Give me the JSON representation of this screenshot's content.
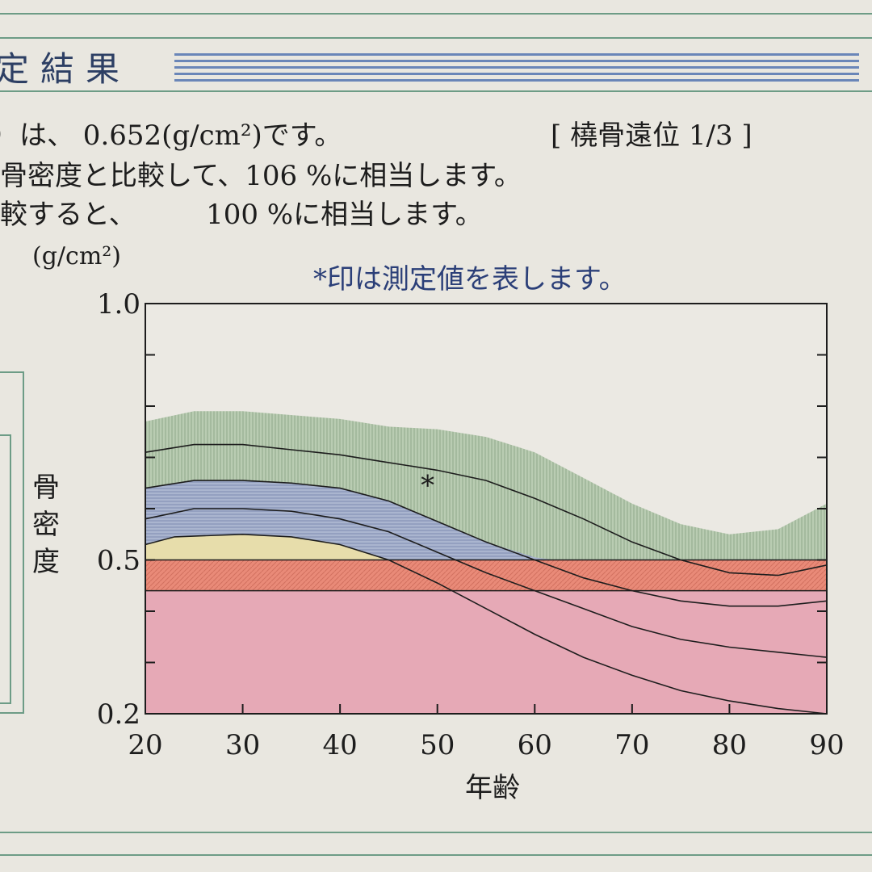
{
  "header": {
    "title": "定結果"
  },
  "text_lines": [
    "）は、 0.652(g/cm²)です。",
    "骨密度と比較して、106 %に相当します。",
    "較すると、        100 %に相当します。"
  ],
  "site_label": "[ 橈骨遠位 1/3 ]",
  "note": "*印は測定値を表します。",
  "chart_data": {
    "type": "area",
    "unit_label": "(g/cm²)",
    "ylabel": "骨密度",
    "xlabel": "年齢",
    "xlim": [
      20,
      90
    ],
    "ylim": [
      0.2,
      1.0
    ],
    "x_ticks": [
      "20",
      "30",
      "40",
      "50",
      "60",
      "70",
      "80",
      "90"
    ],
    "y_ticks": [
      "0.2",
      "0.5",
      "1.0"
    ],
    "bands": [
      {
        "name": "green",
        "color": "#b9ccb2",
        "points": [
          [
            20,
            0.77
          ],
          [
            25,
            0.79
          ],
          [
            30,
            0.79
          ],
          [
            40,
            0.775
          ],
          [
            45,
            0.76
          ],
          [
            50,
            0.755
          ],
          [
            55,
            0.74
          ],
          [
            60,
            0.71
          ],
          [
            65,
            0.66
          ],
          [
            70,
            0.61
          ],
          [
            75,
            0.57
          ],
          [
            80,
            0.55
          ],
          [
            85,
            0.56
          ],
          [
            90,
            0.61
          ]
        ]
      },
      {
        "name": "blue",
        "color": "#aab5cf",
        "points": [
          [
            20,
            0.64
          ],
          [
            25,
            0.655
          ],
          [
            30,
            0.655
          ],
          [
            35,
            0.65
          ],
          [
            40,
            0.64
          ],
          [
            45,
            0.615
          ],
          [
            50,
            0.575
          ],
          [
            55,
            0.535
          ],
          [
            60,
            0.505
          ],
          [
            62,
            0.5
          ]
        ]
      },
      {
        "name": "yellow",
        "color": "#e7ddab",
        "points": [
          [
            20,
            0.53
          ],
          [
            23,
            0.545
          ],
          [
            30,
            0.55
          ],
          [
            35,
            0.545
          ],
          [
            40,
            0.53
          ],
          [
            45,
            0.5
          ]
        ]
      }
    ],
    "reference_bands": [
      {
        "name": "orange",
        "from": 0.44,
        "to": 0.5,
        "color": "#e98a78"
      },
      {
        "name": "pink",
        "from": 0.2,
        "to": 0.44,
        "color": "#e6a9b6"
      }
    ],
    "curves": [
      {
        "points": [
          [
            20,
            0.71
          ],
          [
            25,
            0.725
          ],
          [
            30,
            0.725
          ],
          [
            35,
            0.715
          ],
          [
            40,
            0.705
          ],
          [
            45,
            0.69
          ],
          [
            50,
            0.675
          ],
          [
            55,
            0.655
          ],
          [
            60,
            0.62
          ],
          [
            65,
            0.58
          ],
          [
            70,
            0.535
          ],
          [
            75,
            0.5
          ],
          [
            80,
            0.475
          ],
          [
            85,
            0.47
          ],
          [
            90,
            0.49
          ]
        ]
      },
      {
        "points": [
          [
            20,
            0.64
          ],
          [
            25,
            0.655
          ],
          [
            30,
            0.655
          ],
          [
            35,
            0.65
          ],
          [
            40,
            0.64
          ],
          [
            45,
            0.615
          ],
          [
            50,
            0.575
          ],
          [
            55,
            0.535
          ],
          [
            60,
            0.5
          ],
          [
            65,
            0.465
          ],
          [
            70,
            0.44
          ],
          [
            75,
            0.42
          ],
          [
            80,
            0.41
          ],
          [
            85,
            0.41
          ],
          [
            90,
            0.42
          ]
        ]
      },
      {
        "points": [
          [
            20,
            0.58
          ],
          [
            25,
            0.6
          ],
          [
            30,
            0.6
          ],
          [
            35,
            0.595
          ],
          [
            40,
            0.58
          ],
          [
            45,
            0.555
          ],
          [
            50,
            0.515
          ],
          [
            55,
            0.475
          ],
          [
            60,
            0.44
          ],
          [
            65,
            0.405
          ],
          [
            70,
            0.37
          ],
          [
            75,
            0.345
          ],
          [
            80,
            0.33
          ],
          [
            85,
            0.32
          ],
          [
            90,
            0.31
          ]
        ]
      },
      {
        "points": [
          [
            20,
            0.53
          ],
          [
            23,
            0.545
          ],
          [
            30,
            0.55
          ],
          [
            35,
            0.545
          ],
          [
            40,
            0.53
          ],
          [
            45,
            0.5
          ],
          [
            50,
            0.455
          ],
          [
            55,
            0.405
          ],
          [
            60,
            0.355
          ],
          [
            65,
            0.31
          ],
          [
            70,
            0.275
          ],
          [
            75,
            0.245
          ],
          [
            80,
            0.225
          ],
          [
            85,
            0.21
          ],
          [
            90,
            0.2
          ]
        ]
      }
    ],
    "marker": {
      "label": "*",
      "x": 49,
      "y": 0.65
    }
  }
}
